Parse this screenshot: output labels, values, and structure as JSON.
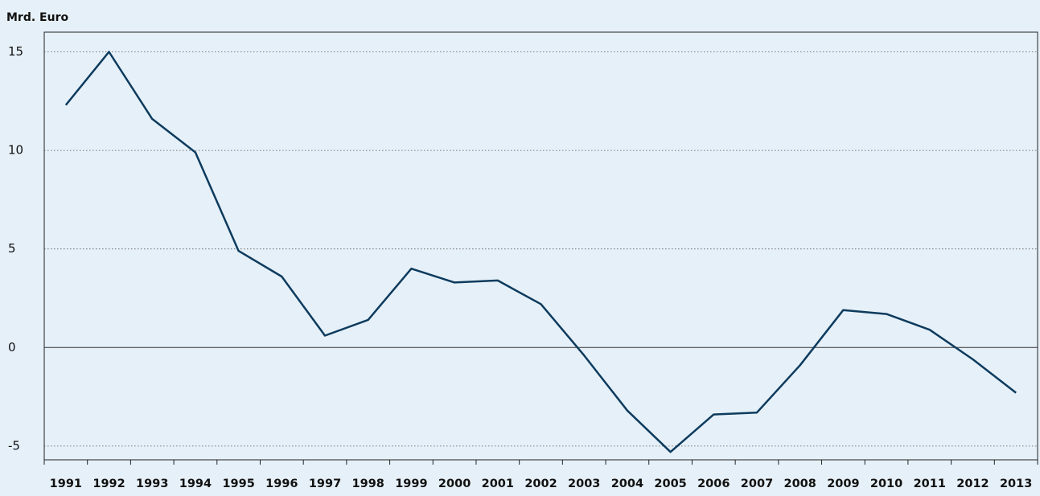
{
  "chart_data": {
    "type": "line",
    "y_label": "Mrd. Euro",
    "categories": [
      "1991",
      "1992",
      "1993",
      "1994",
      "1995",
      "1996",
      "1997",
      "1998",
      "1999",
      "2000",
      "2001",
      "2002",
      "2003",
      "2004",
      "2005",
      "2006",
      "2007",
      "2008",
      "2009",
      "2010",
      "2011",
      "2012",
      "2013"
    ],
    "values": [
      12.3,
      15.0,
      11.6,
      9.9,
      4.9,
      3.6,
      0.6,
      1.4,
      4.0,
      3.3,
      3.4,
      2.2,
      -0.4,
      -3.2,
      -5.3,
      -3.4,
      -3.3,
      -0.9,
      1.9,
      1.7,
      0.9,
      -0.6,
      -2.3
    ],
    "color": "#0d3b5e",
    "ylim": [
      -5.7,
      16
    ],
    "yticks": [
      -5,
      0,
      5,
      10,
      15
    ],
    "grid": true
  }
}
